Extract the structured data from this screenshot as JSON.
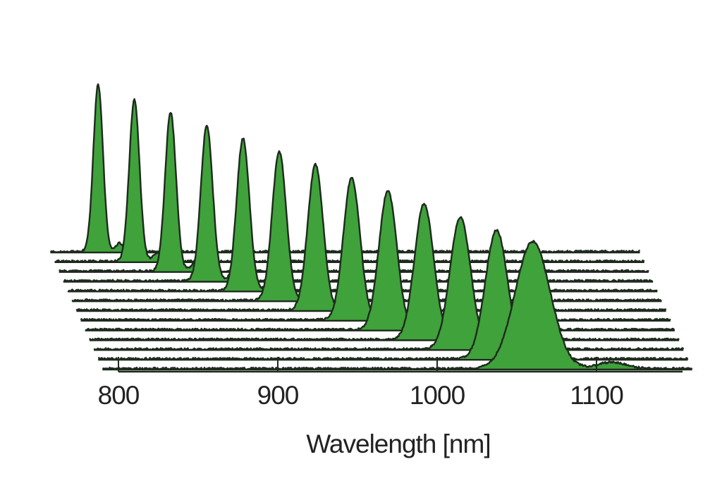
{
  "chart_data": {
    "type": "area",
    "style": "waterfall",
    "title": "",
    "xlabel": "Wavelength [nm]",
    "ylabel": "",
    "xlim": [
      800,
      1150
    ],
    "ylim": [
      0,
      1
    ],
    "x_ticks": [
      800,
      900,
      1000,
      1100
    ],
    "x_tick_labels": [
      "800",
      "900",
      "1000",
      "1100"
    ],
    "grid": false,
    "legend": "none",
    "colors": {
      "fill": "#3fa23a",
      "stroke": "#1e2a1e",
      "axis": "#1e2a1e"
    },
    "series_shape": "gaussian",
    "series": [
      {
        "peak_nm": 820,
        "width_nm": 3.0,
        "amplitude": 1.0
      },
      {
        "peak_nm": 840,
        "width_nm": 3.2,
        "amplitude": 0.97
      },
      {
        "peak_nm": 860,
        "width_nm": 3.4,
        "amplitude": 0.95
      },
      {
        "peak_nm": 880,
        "width_nm": 3.7,
        "amplitude": 0.93
      },
      {
        "peak_nm": 900,
        "width_nm": 4.0,
        "amplitude": 0.91
      },
      {
        "peak_nm": 920,
        "width_nm": 4.4,
        "amplitude": 0.89
      },
      {
        "peak_nm": 940,
        "width_nm": 4.8,
        "amplitude": 0.87
      },
      {
        "peak_nm": 960,
        "width_nm": 5.2,
        "amplitude": 0.85
      },
      {
        "peak_nm": 980,
        "width_nm": 5.6,
        "amplitude": 0.83
      },
      {
        "peak_nm": 1000,
        "width_nm": 6.0,
        "amplitude": 0.81
      },
      {
        "peak_nm": 1020,
        "width_nm": 6.5,
        "amplitude": 0.79
      },
      {
        "peak_nm": 1040,
        "width_nm": 7.0,
        "amplitude": 0.77
      },
      {
        "peak_nm": 1060,
        "width_nm": 11.0,
        "amplitude": 0.76
      }
    ]
  }
}
